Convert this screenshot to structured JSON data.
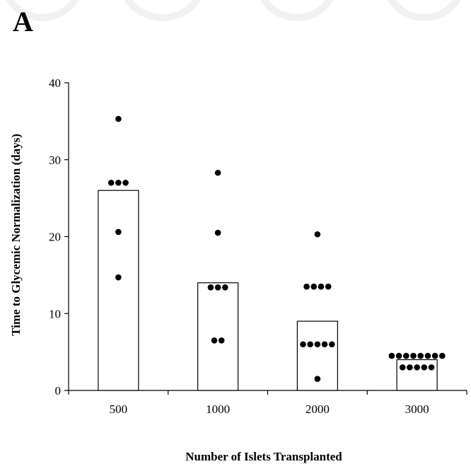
{
  "chart_data": {
    "type": "bar",
    "panel_label": "A",
    "title": "",
    "xlabel": "Number of Islets Transplanted",
    "ylabel": "Time to Glycemic Normalization (days)",
    "categories": [
      "500",
      "1000",
      "2000",
      "3000"
    ],
    "values": [
      26,
      14,
      9,
      4
    ],
    "ylim": [
      0,
      40
    ],
    "yticks": [
      0,
      10,
      20,
      30,
      40
    ],
    "grid": false,
    "legend": "none",
    "points": [
      [
        35.3,
        27,
        27,
        27,
        20.6,
        14.7
      ],
      [
        28.3,
        20.5,
        13.4,
        13.4,
        13.4,
        6.5,
        6.5
      ],
      [
        20.3,
        13.5,
        13.5,
        13.5,
        13.5,
        6,
        6,
        6,
        6,
        6,
        1.5
      ],
      [
        4.5,
        4.5,
        4.5,
        4.5,
        4.5,
        4.5,
        4.5,
        4.5,
        3,
        3,
        3,
        3,
        3
      ]
    ],
    "colors": {
      "bar_fill": "#ffffff",
      "bar_stroke": "#000000",
      "point": "#000000",
      "axis": "#000000"
    }
  }
}
